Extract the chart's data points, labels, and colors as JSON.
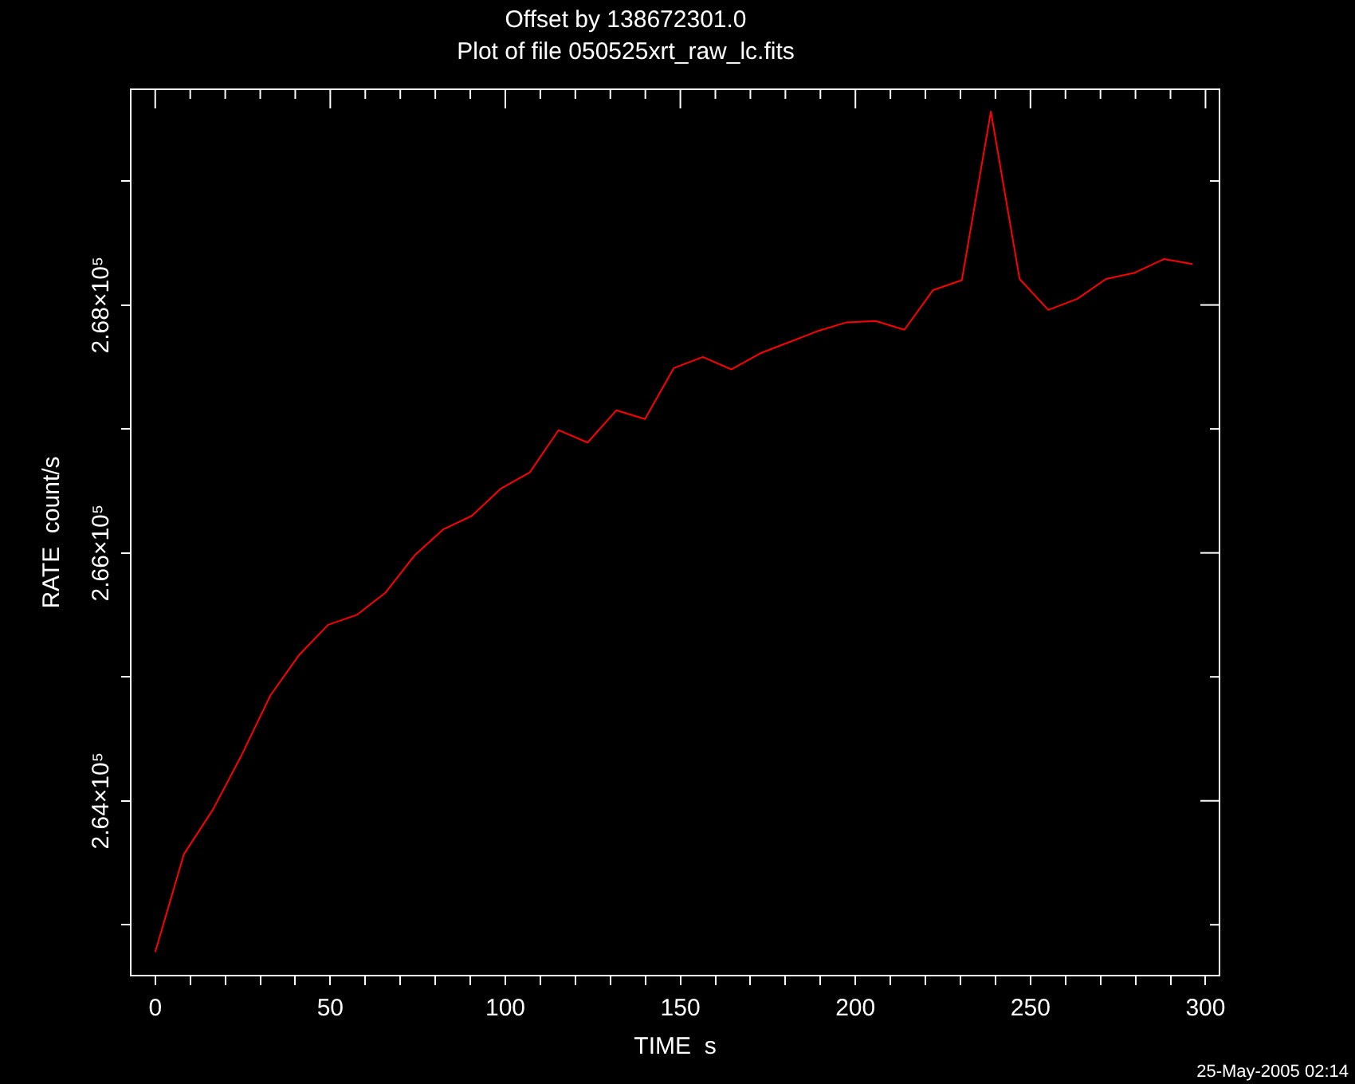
{
  "chart_data": {
    "type": "line",
    "title": "Offset by 138672301.0",
    "subtitle": "Plot of file 050525xrt_raw_lc.fits",
    "xlabel": "TIME  s",
    "ylabel": "RATE  count/s",
    "annotations": [
      "25-May-2005 02:14"
    ],
    "x": [
      0,
      8.2,
      16.5,
      24.7,
      32.9,
      41.2,
      49.4,
      57.6,
      65.8,
      74.1,
      82.3,
      90.5,
      98.8,
      107,
      115.2,
      123.5,
      131.7,
      139.9,
      148.1,
      156.4,
      164.6,
      172.8,
      181.1,
      189.3,
      197.5,
      205.8,
      214,
      222.2,
      230.4,
      238.7,
      246.9,
      255.1,
      263.4,
      271.6,
      279.8,
      288.1,
      296.3
    ],
    "series": [
      {
        "color": "#ff0000",
        "values": [
          262780,
          263570,
          263930,
          264370,
          264850,
          265180,
          265420,
          265500,
          265680,
          265980,
          266190,
          266300,
          266520,
          266650,
          266990,
          266890,
          267150,
          267080,
          267490,
          267580,
          267480,
          267610,
          267700,
          267790,
          267860,
          267870,
          267800,
          268120,
          268200,
          269560,
          268210,
          267960,
          268050,
          268210,
          268260,
          268370,
          268330
        ]
      }
    ],
    "xlim": [
      -7,
      304
    ],
    "ylim": [
      262590,
      269740
    ],
    "xticks": [
      0,
      {
        "value": 10,
        "label": null
      },
      {
        "value": 20,
        "label": null
      },
      {
        "value": 30,
        "label": null
      },
      {
        "value": 40,
        "label": null
      },
      50,
      {
        "value": 60,
        "label": null
      },
      {
        "value": 70,
        "label": null
      },
      {
        "value": 80,
        "label": null
      },
      {
        "value": 90,
        "label": null
      },
      100,
      {
        "value": 110,
        "label": null
      },
      {
        "value": 120,
        "label": null
      },
      {
        "value": 130,
        "label": null
      },
      {
        "value": 140,
        "label": null
      },
      150,
      {
        "value": 160,
        "label": null
      },
      {
        "value": 170,
        "label": null
      },
      {
        "value": 180,
        "label": null
      },
      {
        "value": 190,
        "label": null
      },
      200,
      {
        "value": 210,
        "label": null
      },
      {
        "value": 220,
        "label": null
      },
      {
        "value": 230,
        "label": null
      },
      {
        "value": 240,
        "label": null
      },
      250,
      {
        "value": 260,
        "label": null
      },
      {
        "value": 270,
        "label": null
      },
      {
        "value": 280,
        "label": null
      },
      {
        "value": 290,
        "label": null
      },
      300
    ],
    "yticks": [
      {
        "value": 263000,
        "label": null
      },
      {
        "value": 264000,
        "label": "2.64×10⁵"
      },
      {
        "value": 265000,
        "label": null
      },
      {
        "value": 266000,
        "label": "2.66×10⁵"
      },
      {
        "value": 267000,
        "label": null
      },
      {
        "value": 268000,
        "label": "2.68×10⁵"
      },
      {
        "value": 269000,
        "label": null
      }
    ],
    "grid": false,
    "legend": false,
    "marker": "none",
    "line_style": "solid"
  }
}
